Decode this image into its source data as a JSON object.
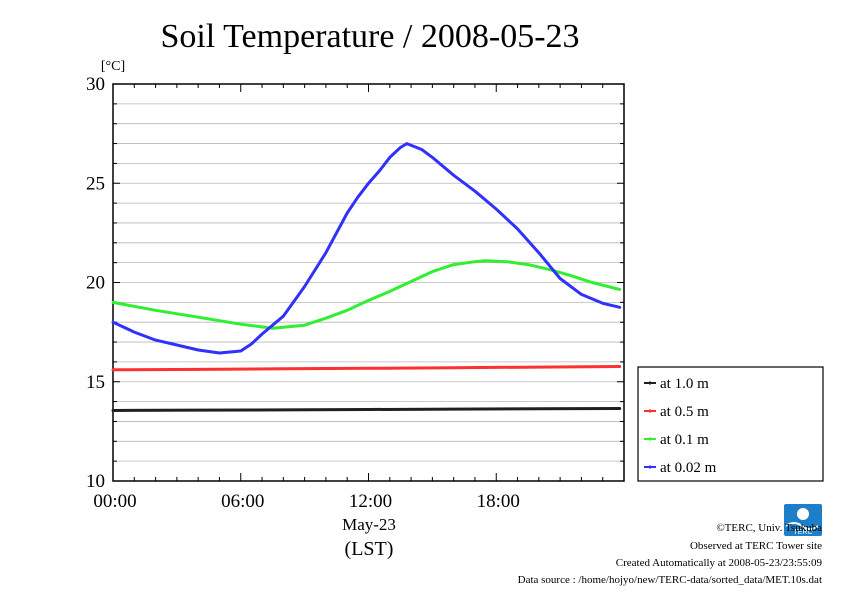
{
  "chart_data": {
    "type": "line",
    "title": "Soil Temperature / 2008-05-23",
    "ylabel": "[°C]",
    "ylim": [
      10,
      30
    ],
    "yticks": [
      10,
      15,
      20,
      25,
      30
    ],
    "xlim": [
      0,
      24
    ],
    "xticks": [
      {
        "value": 0,
        "label": "00:00"
      },
      {
        "value": 6,
        "label": "06:00"
      },
      {
        "value": 12,
        "label": "12:00"
      },
      {
        "value": 18,
        "label": "18:00"
      }
    ],
    "xdate_label": "May-23",
    "xlabel": "(LST)",
    "grid": true,
    "legend_position": "right",
    "series": [
      {
        "name": "at 1.0 m",
        "color": "#202020",
        "points": [
          [
            0,
            13.55
          ],
          [
            4,
            13.57
          ],
          [
            8,
            13.58
          ],
          [
            12,
            13.6
          ],
          [
            16,
            13.62
          ],
          [
            20,
            13.64
          ],
          [
            23.8,
            13.65
          ]
        ]
      },
      {
        "name": "at 0.5 m",
        "color": "#ff3030",
        "points": [
          [
            0,
            15.6
          ],
          [
            4,
            15.62
          ],
          [
            8,
            15.65
          ],
          [
            12,
            15.68
          ],
          [
            16,
            15.71
          ],
          [
            20,
            15.74
          ],
          [
            23.8,
            15.77
          ]
        ]
      },
      {
        "name": "at 0.1 m",
        "color": "#30ee30",
        "points": [
          [
            0,
            19.0
          ],
          [
            2,
            18.6
          ],
          [
            4,
            18.25
          ],
          [
            6,
            17.9
          ],
          [
            7.5,
            17.7
          ],
          [
            9,
            17.85
          ],
          [
            10,
            18.2
          ],
          [
            11,
            18.6
          ],
          [
            12,
            19.1
          ],
          [
            13,
            19.55
          ],
          [
            14,
            20.05
          ],
          [
            15,
            20.55
          ],
          [
            16,
            20.9
          ],
          [
            17,
            21.05
          ],
          [
            17.5,
            21.1
          ],
          [
            18.5,
            21.05
          ],
          [
            19.5,
            20.9
          ],
          [
            20.5,
            20.65
          ],
          [
            21.5,
            20.35
          ],
          [
            22.5,
            20.0
          ],
          [
            23.8,
            19.65
          ]
        ]
      },
      {
        "name": "at 0.02 m",
        "color": "#3030ff",
        "points": [
          [
            0,
            18.0
          ],
          [
            1,
            17.5
          ],
          [
            2,
            17.1
          ],
          [
            3,
            16.85
          ],
          [
            4,
            16.6
          ],
          [
            5,
            16.45
          ],
          [
            6,
            16.55
          ],
          [
            6.5,
            16.9
          ],
          [
            7,
            17.4
          ],
          [
            8,
            18.3
          ],
          [
            9,
            19.8
          ],
          [
            10,
            21.5
          ],
          [
            11,
            23.5
          ],
          [
            11.5,
            24.3
          ],
          [
            12,
            25.0
          ],
          [
            12.5,
            25.6
          ],
          [
            13,
            26.3
          ],
          [
            13.5,
            26.8
          ],
          [
            13.8,
            27.0
          ],
          [
            14.5,
            26.7
          ],
          [
            15,
            26.3
          ],
          [
            16,
            25.4
          ],
          [
            17,
            24.6
          ],
          [
            18,
            23.7
          ],
          [
            19,
            22.7
          ],
          [
            20,
            21.5
          ],
          [
            21,
            20.2
          ],
          [
            22,
            19.4
          ],
          [
            23,
            18.95
          ],
          [
            23.8,
            18.75
          ]
        ]
      }
    ]
  },
  "footer": {
    "copyright": "©TERC, Univ. Tsukuba",
    "observed": "Observed at TERC Tower site",
    "created": "Created Automatically at 2008-05-23/23:55:09",
    "source": "Data source : /home/hojyo/new/TERC-data/sorted_data/MET.10s.dat",
    "logo_text": "TERC"
  }
}
